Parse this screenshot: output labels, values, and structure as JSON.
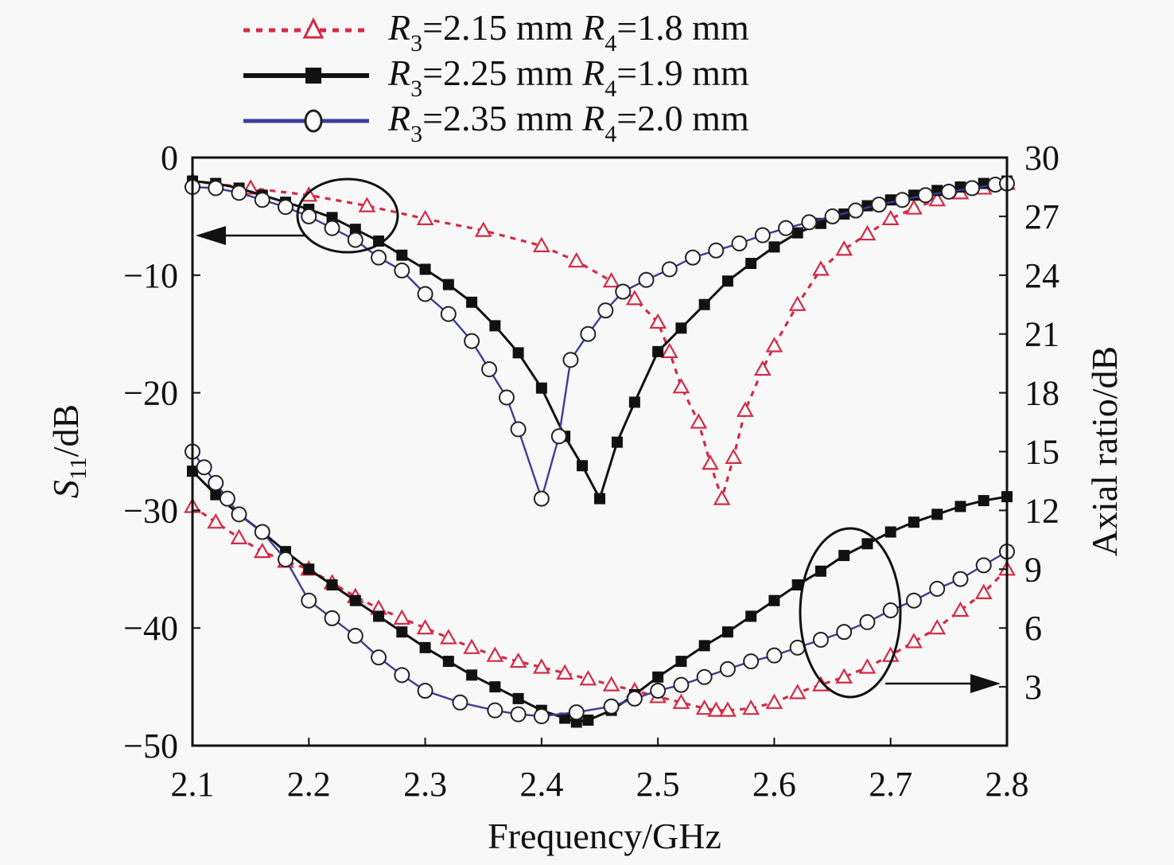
{
  "chart_data": {
    "type": "line",
    "title": "",
    "xlabel": "Frequency/GHz",
    "ylabel_left": {
      "main": "S",
      "sub": "11",
      "rest": "/dB"
    },
    "ylabel_right": "Axial ratio/dB",
    "xlim": [
      2.1,
      2.8
    ],
    "ylim_left": [
      -50,
      0
    ],
    "ylim_right": [
      0,
      30
    ],
    "x_ticks": [
      "2.1",
      "2.2",
      "2.3",
      "2.4",
      "2.5",
      "2.6",
      "2.7",
      "2.8"
    ],
    "x_tick_values": [
      2.1,
      2.2,
      2.3,
      2.4,
      2.5,
      2.6,
      2.7,
      2.8
    ],
    "y_left_ticks": [
      "0",
      "−10",
      "−20",
      "−30",
      "−40",
      "−50"
    ],
    "y_left_tick_values": [
      0,
      -10,
      -20,
      -30,
      -40,
      -50
    ],
    "y_right_ticks": [
      "30",
      "27",
      "24",
      "21",
      "18",
      "15",
      "12",
      "9",
      "6",
      "3"
    ],
    "y_right_tick_values": [
      30,
      27,
      24,
      21,
      18,
      15,
      12,
      9,
      6,
      3
    ],
    "grid": false,
    "legend_position": "top",
    "series": [
      {
        "name": "R3=2.15 mm R4=1.8 mm",
        "legend": {
          "r3": "R",
          "r3sub": "3",
          "r3val": "=2.15 mm ",
          "r4": "R",
          "r4sub": "4",
          "r4val": "=1.8 mm"
        },
        "color": "#d42a45",
        "marker": "triangle",
        "dash": true,
        "s11": {
          "x": [
            2.1,
            2.15,
            2.2,
            2.25,
            2.3,
            2.35,
            2.4,
            2.43,
            2.46,
            2.48,
            2.5,
            2.51,
            2.52,
            2.535,
            2.545,
            2.555,
            2.565,
            2.575,
            2.59,
            2.6,
            2.62,
            2.64,
            2.66,
            2.68,
            2.7,
            2.72,
            2.74,
            2.76,
            2.78,
            2.8
          ],
          "y": [
            -2,
            -2.6,
            -3.2,
            -4.1,
            -5.2,
            -6.2,
            -7.5,
            -8.8,
            -10.5,
            -12,
            -14,
            -16.5,
            -19.5,
            -22.5,
            -26,
            -29,
            -25.5,
            -21.5,
            -18,
            -16,
            -12.5,
            -9.5,
            -7.8,
            -6.5,
            -5.2,
            -4.3,
            -3.6,
            -3,
            -2.6,
            -2.2
          ]
        },
        "ar": {
          "x": [
            2.1,
            2.12,
            2.14,
            2.16,
            2.18,
            2.2,
            2.22,
            2.24,
            2.26,
            2.28,
            2.3,
            2.32,
            2.34,
            2.36,
            2.38,
            2.4,
            2.42,
            2.44,
            2.46,
            2.48,
            2.5,
            2.52,
            2.54,
            2.55,
            2.56,
            2.58,
            2.6,
            2.62,
            2.64,
            2.66,
            2.68,
            2.7,
            2.72,
            2.74,
            2.76,
            2.78,
            2.8
          ],
          "y": [
            12.2,
            11.4,
            10.6,
            9.9,
            9.4,
            9.0,
            8.3,
            7.6,
            7.0,
            6.5,
            6.0,
            5.5,
            5.0,
            4.6,
            4.3,
            4.0,
            3.7,
            3.4,
            3.1,
            2.8,
            2.5,
            2.2,
            1.9,
            1.8,
            1.8,
            1.9,
            2.2,
            2.7,
            3.1,
            3.5,
            4.0,
            4.6,
            5.3,
            6.0,
            6.9,
            7.8,
            9.0
          ]
        }
      },
      {
        "name": "R3=2.25 mm R4=1.9 mm",
        "legend": {
          "r3": "R",
          "r3sub": "3",
          "r3val": "=2.25 mm ",
          "r4": "R",
          "r4sub": "4",
          "r4val": "=1.9 mm"
        },
        "color": "#111111",
        "marker": "square",
        "dash": false,
        "s11": {
          "x": [
            2.1,
            2.12,
            2.14,
            2.16,
            2.18,
            2.2,
            2.22,
            2.24,
            2.26,
            2.28,
            2.3,
            2.32,
            2.34,
            2.36,
            2.38,
            2.4,
            2.42,
            2.435,
            2.45,
            2.465,
            2.48,
            2.5,
            2.52,
            2.54,
            2.56,
            2.58,
            2.6,
            2.62,
            2.64,
            2.66,
            2.68,
            2.7,
            2.72,
            2.74,
            2.76,
            2.78,
            2.8
          ],
          "y": [
            -2,
            -2.2,
            -2.6,
            -3.2,
            -3.8,
            -4.4,
            -5.1,
            -6.1,
            -7.1,
            -8.3,
            -9.5,
            -10.8,
            -12.3,
            -14.3,
            -16.6,
            -19.6,
            -23.7,
            -26.2,
            -29,
            -24.2,
            -20.8,
            -16.5,
            -14.5,
            -12.5,
            -10.5,
            -9,
            -7.6,
            -6.4,
            -5.6,
            -4.8,
            -4.1,
            -3.6,
            -3.2,
            -2.8,
            -2.5,
            -2.2,
            -2.0
          ]
        },
        "ar": {
          "x": [
            2.1,
            2.12,
            2.14,
            2.16,
            2.18,
            2.2,
            2.22,
            2.24,
            2.26,
            2.28,
            2.3,
            2.32,
            2.34,
            2.36,
            2.38,
            2.4,
            2.42,
            2.43,
            2.44,
            2.46,
            2.48,
            2.5,
            2.52,
            2.54,
            2.56,
            2.58,
            2.6,
            2.62,
            2.64,
            2.66,
            2.68,
            2.7,
            2.72,
            2.74,
            2.76,
            2.78,
            2.8
          ],
          "y": [
            14.0,
            12.8,
            11.8,
            10.9,
            9.9,
            9.0,
            8.2,
            7.4,
            6.6,
            5.8,
            5.0,
            4.3,
            3.6,
            3.0,
            2.4,
            1.8,
            1.4,
            1.2,
            1.3,
            1.8,
            2.6,
            3.5,
            4.3,
            5.1,
            5.8,
            6.6,
            7.4,
            8.2,
            8.9,
            9.7,
            10.3,
            10.9,
            11.4,
            11.8,
            12.2,
            12.5,
            12.7
          ]
        }
      },
      {
        "name": "R3=2.35 mm R4=2.0 mm",
        "legend": {
          "r3": "R",
          "r3sub": "3",
          "r3val": "=2.35 mm ",
          "r4": "R",
          "r4sub": "4",
          "r4val": "=2.0 mm"
        },
        "color": "#3c3c9a",
        "marker": "circle",
        "dash": false,
        "s11": {
          "x": [
            2.1,
            2.12,
            2.14,
            2.16,
            2.18,
            2.2,
            2.22,
            2.24,
            2.26,
            2.28,
            2.3,
            2.32,
            2.34,
            2.355,
            2.37,
            2.38,
            2.4,
            2.415,
            2.425,
            2.44,
            2.455,
            2.47,
            2.49,
            2.51,
            2.53,
            2.55,
            2.57,
            2.59,
            2.61,
            2.63,
            2.65,
            2.67,
            2.69,
            2.71,
            2.73,
            2.75,
            2.77,
            2.79,
            2.8
          ],
          "y": [
            -2.5,
            -2.6,
            -3,
            -3.6,
            -4.2,
            -5,
            -6,
            -7,
            -8.5,
            -9.6,
            -11.6,
            -13.3,
            -15.6,
            -18,
            -20.4,
            -23.1,
            -29,
            -23.7,
            -17.2,
            -15,
            -13,
            -11.4,
            -10.4,
            -9.5,
            -8.5,
            -7.9,
            -7.3,
            -6.6,
            -6.0,
            -5.5,
            -5.0,
            -4.5,
            -4.0,
            -3.6,
            -3.2,
            -2.9,
            -2.6,
            -2.3,
            -2.2
          ]
        },
        "ar": {
          "x": [
            2.1,
            2.11,
            2.12,
            2.13,
            2.14,
            2.16,
            2.18,
            2.2,
            2.22,
            2.24,
            2.26,
            2.28,
            2.3,
            2.33,
            2.36,
            2.38,
            2.4,
            2.43,
            2.46,
            2.48,
            2.5,
            2.52,
            2.54,
            2.56,
            2.58,
            2.6,
            2.62,
            2.64,
            2.66,
            2.68,
            2.7,
            2.72,
            2.74,
            2.76,
            2.78,
            2.8
          ],
          "y": [
            15.0,
            14.2,
            13.4,
            12.6,
            11.8,
            10.9,
            9.5,
            7.4,
            6.5,
            5.6,
            4.5,
            3.6,
            2.8,
            2.2,
            1.8,
            1.6,
            1.5,
            1.7,
            2.0,
            2.4,
            2.8,
            3.1,
            3.5,
            3.9,
            4.3,
            4.6,
            5.0,
            5.4,
            5.8,
            6.3,
            6.9,
            7.4,
            8.0,
            8.5,
            9.2,
            9.9
          ]
        }
      }
    ],
    "annotations": [
      {
        "type": "ellipse",
        "target": "s11",
        "arrow": "left"
      },
      {
        "type": "ellipse",
        "target": "ar",
        "arrow": "right"
      }
    ]
  }
}
